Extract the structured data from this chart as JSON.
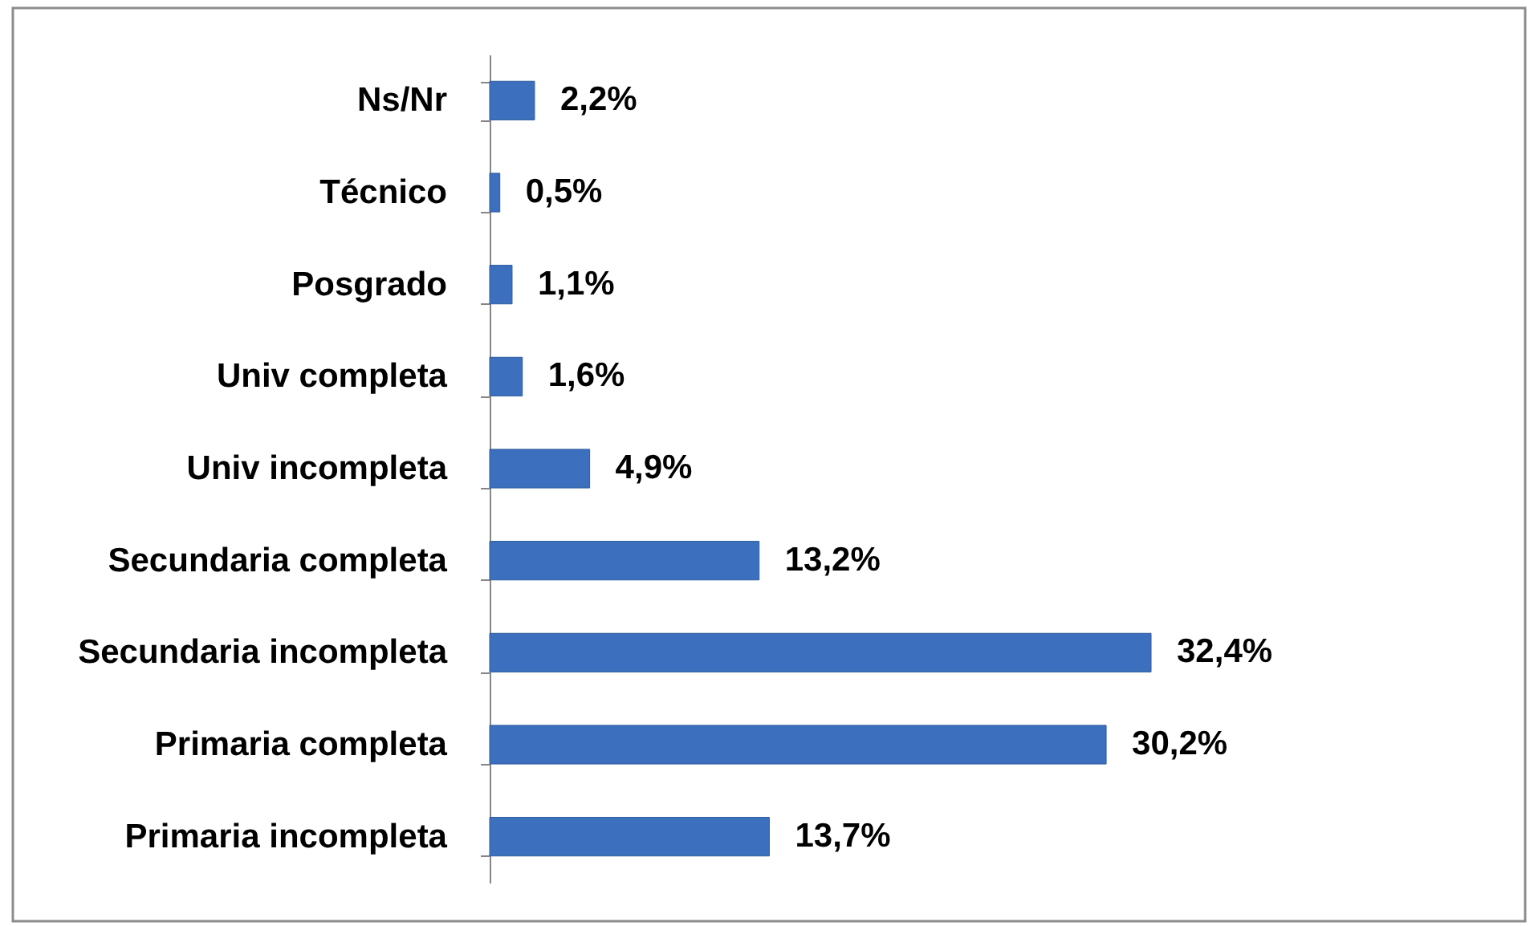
{
  "chart_data": {
    "type": "bar",
    "orientation": "horizontal",
    "categories": [
      "Ns/Nr",
      "Técnico",
      "Posgrado",
      "Univ completa",
      "Univ incompleta",
      "Secundaria completa",
      "Secundaria incompleta",
      "Primaria completa",
      "Primaria incompleta"
    ],
    "values": [
      2.2,
      0.5,
      1.1,
      1.6,
      4.9,
      13.2,
      32.4,
      30.2,
      13.7
    ],
    "value_labels": [
      "2,2%",
      "0,5%",
      "1,1%",
      "1,6%",
      "4,9%",
      "13,2%",
      "32,4%",
      "30,2%",
      "13,7%"
    ],
    "color": "#3c70be",
    "tick_labels": "y"
  }
}
